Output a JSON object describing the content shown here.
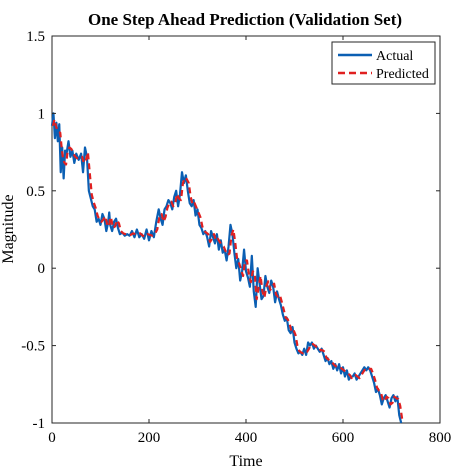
{
  "chart_data": {
    "type": "line",
    "title": "One Step Ahead Prediction (Validation Set)",
    "xlabel": "Time",
    "ylabel": "Magnitude",
    "xlim": [
      0,
      800
    ],
    "ylim": [
      -1,
      1.5
    ],
    "xticks": [
      "0",
      "200",
      "400",
      "600",
      "800"
    ],
    "yticks": [
      "1.5",
      "1",
      "0.5",
      "0",
      "-0.5",
      "-1"
    ],
    "grid": false,
    "legend_position": "top-right",
    "series": [
      {
        "name": "Actual",
        "color": "#0b5fb3",
        "style": "solid",
        "points": [
          [
            0,
            0.92
          ],
          [
            3,
            1.0
          ],
          [
            6,
            0.84
          ],
          [
            9,
            0.94
          ],
          [
            12,
            0.82
          ],
          [
            15,
            0.93
          ],
          [
            18,
            0.62
          ],
          [
            21,
            0.78
          ],
          [
            24,
            0.58
          ],
          [
            27,
            0.76
          ],
          [
            30,
            0.74
          ],
          [
            34,
            0.82
          ],
          [
            38,
            0.72
          ],
          [
            42,
            0.76
          ],
          [
            46,
            0.68
          ],
          [
            50,
            0.74
          ],
          [
            55,
            0.7
          ],
          [
            60,
            0.74
          ],
          [
            64,
            0.62
          ],
          [
            68,
            0.78
          ],
          [
            72,
            0.72
          ],
          [
            76,
            0.5
          ],
          [
            80,
            0.45
          ],
          [
            84,
            0.4
          ],
          [
            88,
            0.38
          ],
          [
            92,
            0.3
          ],
          [
            96,
            0.32
          ],
          [
            100,
            0.28
          ],
          [
            104,
            0.35
          ],
          [
            108,
            0.32
          ],
          [
            112,
            0.24
          ],
          [
            116,
            0.3
          ],
          [
            118,
            0.36
          ],
          [
            120,
            0.28
          ],
          [
            124,
            0.24
          ],
          [
            128,
            0.3
          ],
          [
            132,
            0.32
          ],
          [
            136,
            0.26
          ],
          [
            140,
            0.22
          ],
          [
            145,
            0.23
          ],
          [
            150,
            0.21
          ],
          [
            155,
            0.22
          ],
          [
            160,
            0.21
          ],
          [
            165,
            0.24
          ],
          [
            170,
            0.2
          ],
          [
            175,
            0.25
          ],
          [
            180,
            0.2
          ],
          [
            185,
            0.22
          ],
          [
            190,
            0.19
          ],
          [
            195,
            0.25
          ],
          [
            200,
            0.18
          ],
          [
            205,
            0.24
          ],
          [
            210,
            0.2
          ],
          [
            215,
            0.3
          ],
          [
            220,
            0.38
          ],
          [
            224,
            0.32
          ],
          [
            228,
            0.28
          ],
          [
            232,
            0.38
          ],
          [
            236,
            0.4
          ],
          [
            240,
            0.44
          ],
          [
            244,
            0.42
          ],
          [
            248,
            0.38
          ],
          [
            252,
            0.46
          ],
          [
            256,
            0.5
          ],
          [
            260,
            0.4
          ],
          [
            264,
            0.48
          ],
          [
            268,
            0.62
          ],
          [
            272,
            0.55
          ],
          [
            276,
            0.6
          ],
          [
            280,
            0.5
          ],
          [
            284,
            0.42
          ],
          [
            288,
            0.4
          ],
          [
            292,
            0.44
          ],
          [
            296,
            0.34
          ],
          [
            300,
            0.38
          ],
          [
            304,
            0.28
          ],
          [
            308,
            0.26
          ],
          [
            312,
            0.22
          ],
          [
            316,
            0.24
          ],
          [
            320,
            0.2
          ],
          [
            324,
            0.14
          ],
          [
            328,
            0.24
          ],
          [
            332,
            0.2
          ],
          [
            336,
            0.16
          ],
          [
            340,
            0.22
          ],
          [
            344,
            0.12
          ],
          [
            348,
            0.18
          ],
          [
            352,
            0.1
          ],
          [
            356,
            0.12
          ],
          [
            360,
            0.05
          ],
          [
            364,
            0.14
          ],
          [
            368,
            0.28
          ],
          [
            372,
            0.22
          ],
          [
            376,
            0.1
          ],
          [
            380,
            0.0
          ],
          [
            384,
            0.06
          ],
          [
            388,
            -0.08
          ],
          [
            392,
            -0.02
          ],
          [
            396,
            0.12
          ],
          [
            400,
            -0.02
          ],
          [
            404,
            -0.06
          ],
          [
            408,
            -0.12
          ],
          [
            412,
            0.08
          ],
          [
            416,
            -0.15
          ],
          [
            420,
            -0.25
          ],
          [
            424,
            0.0
          ],
          [
            428,
            -0.1
          ],
          [
            432,
            -0.2
          ],
          [
            436,
            -0.18
          ],
          [
            440,
            -0.05
          ],
          [
            444,
            -0.12
          ],
          [
            448,
            -0.16
          ],
          [
            452,
            -0.08
          ],
          [
            456,
            -0.12
          ],
          [
            460,
            -0.22
          ],
          [
            464,
            -0.15
          ],
          [
            468,
            -0.2
          ],
          [
            472,
            -0.24
          ],
          [
            476,
            -0.3
          ],
          [
            480,
            -0.34
          ],
          [
            484,
            -0.32
          ],
          [
            488,
            -0.4
          ],
          [
            492,
            -0.42
          ],
          [
            496,
            -0.38
          ],
          [
            500,
            -0.48
          ],
          [
            504,
            -0.52
          ],
          [
            508,
            -0.55
          ],
          [
            512,
            -0.54
          ],
          [
            516,
            -0.56
          ],
          [
            520,
            -0.52
          ],
          [
            524,
            -0.56
          ],
          [
            528,
            -0.48
          ],
          [
            532,
            -0.5
          ],
          [
            536,
            -0.48
          ],
          [
            540,
            -0.52
          ],
          [
            544,
            -0.5
          ],
          [
            548,
            -0.52
          ],
          [
            552,
            -0.54
          ],
          [
            556,
            -0.52
          ],
          [
            560,
            -0.56
          ],
          [
            564,
            -0.6
          ],
          [
            568,
            -0.58
          ],
          [
            572,
            -0.62
          ],
          [
            576,
            -0.6
          ],
          [
            580,
            -0.65
          ],
          [
            584,
            -0.62
          ],
          [
            588,
            -0.66
          ],
          [
            592,
            -0.62
          ],
          [
            596,
            -0.68
          ],
          [
            600,
            -0.64
          ],
          [
            604,
            -0.7
          ],
          [
            608,
            -0.66
          ],
          [
            612,
            -0.72
          ],
          [
            616,
            -0.7
          ],
          [
            620,
            -0.7
          ],
          [
            624,
            -0.68
          ],
          [
            628,
            -0.72
          ],
          [
            632,
            -0.7
          ],
          [
            636,
            -0.68
          ],
          [
            640,
            -0.66
          ],
          [
            644,
            -0.64
          ],
          [
            648,
            -0.66
          ],
          [
            652,
            -0.64
          ],
          [
            656,
            -0.66
          ],
          [
            660,
            -0.7
          ],
          [
            664,
            -0.74
          ],
          [
            668,
            -0.8
          ],
          [
            672,
            -0.78
          ],
          [
            676,
            -0.82
          ],
          [
            680,
            -0.88
          ],
          [
            684,
            -0.84
          ],
          [
            688,
            -0.82
          ],
          [
            692,
            -0.86
          ],
          [
            696,
            -0.9
          ],
          [
            700,
            -0.84
          ],
          [
            704,
            -0.82
          ],
          [
            708,
            -0.86
          ],
          [
            712,
            -0.83
          ],
          [
            716,
            -0.95
          ],
          [
            720,
            -1.0
          ]
        ]
      },
      {
        "name": "Predicted",
        "color": "#e02020",
        "style": "dashed",
        "lag": 2
      }
    ]
  }
}
